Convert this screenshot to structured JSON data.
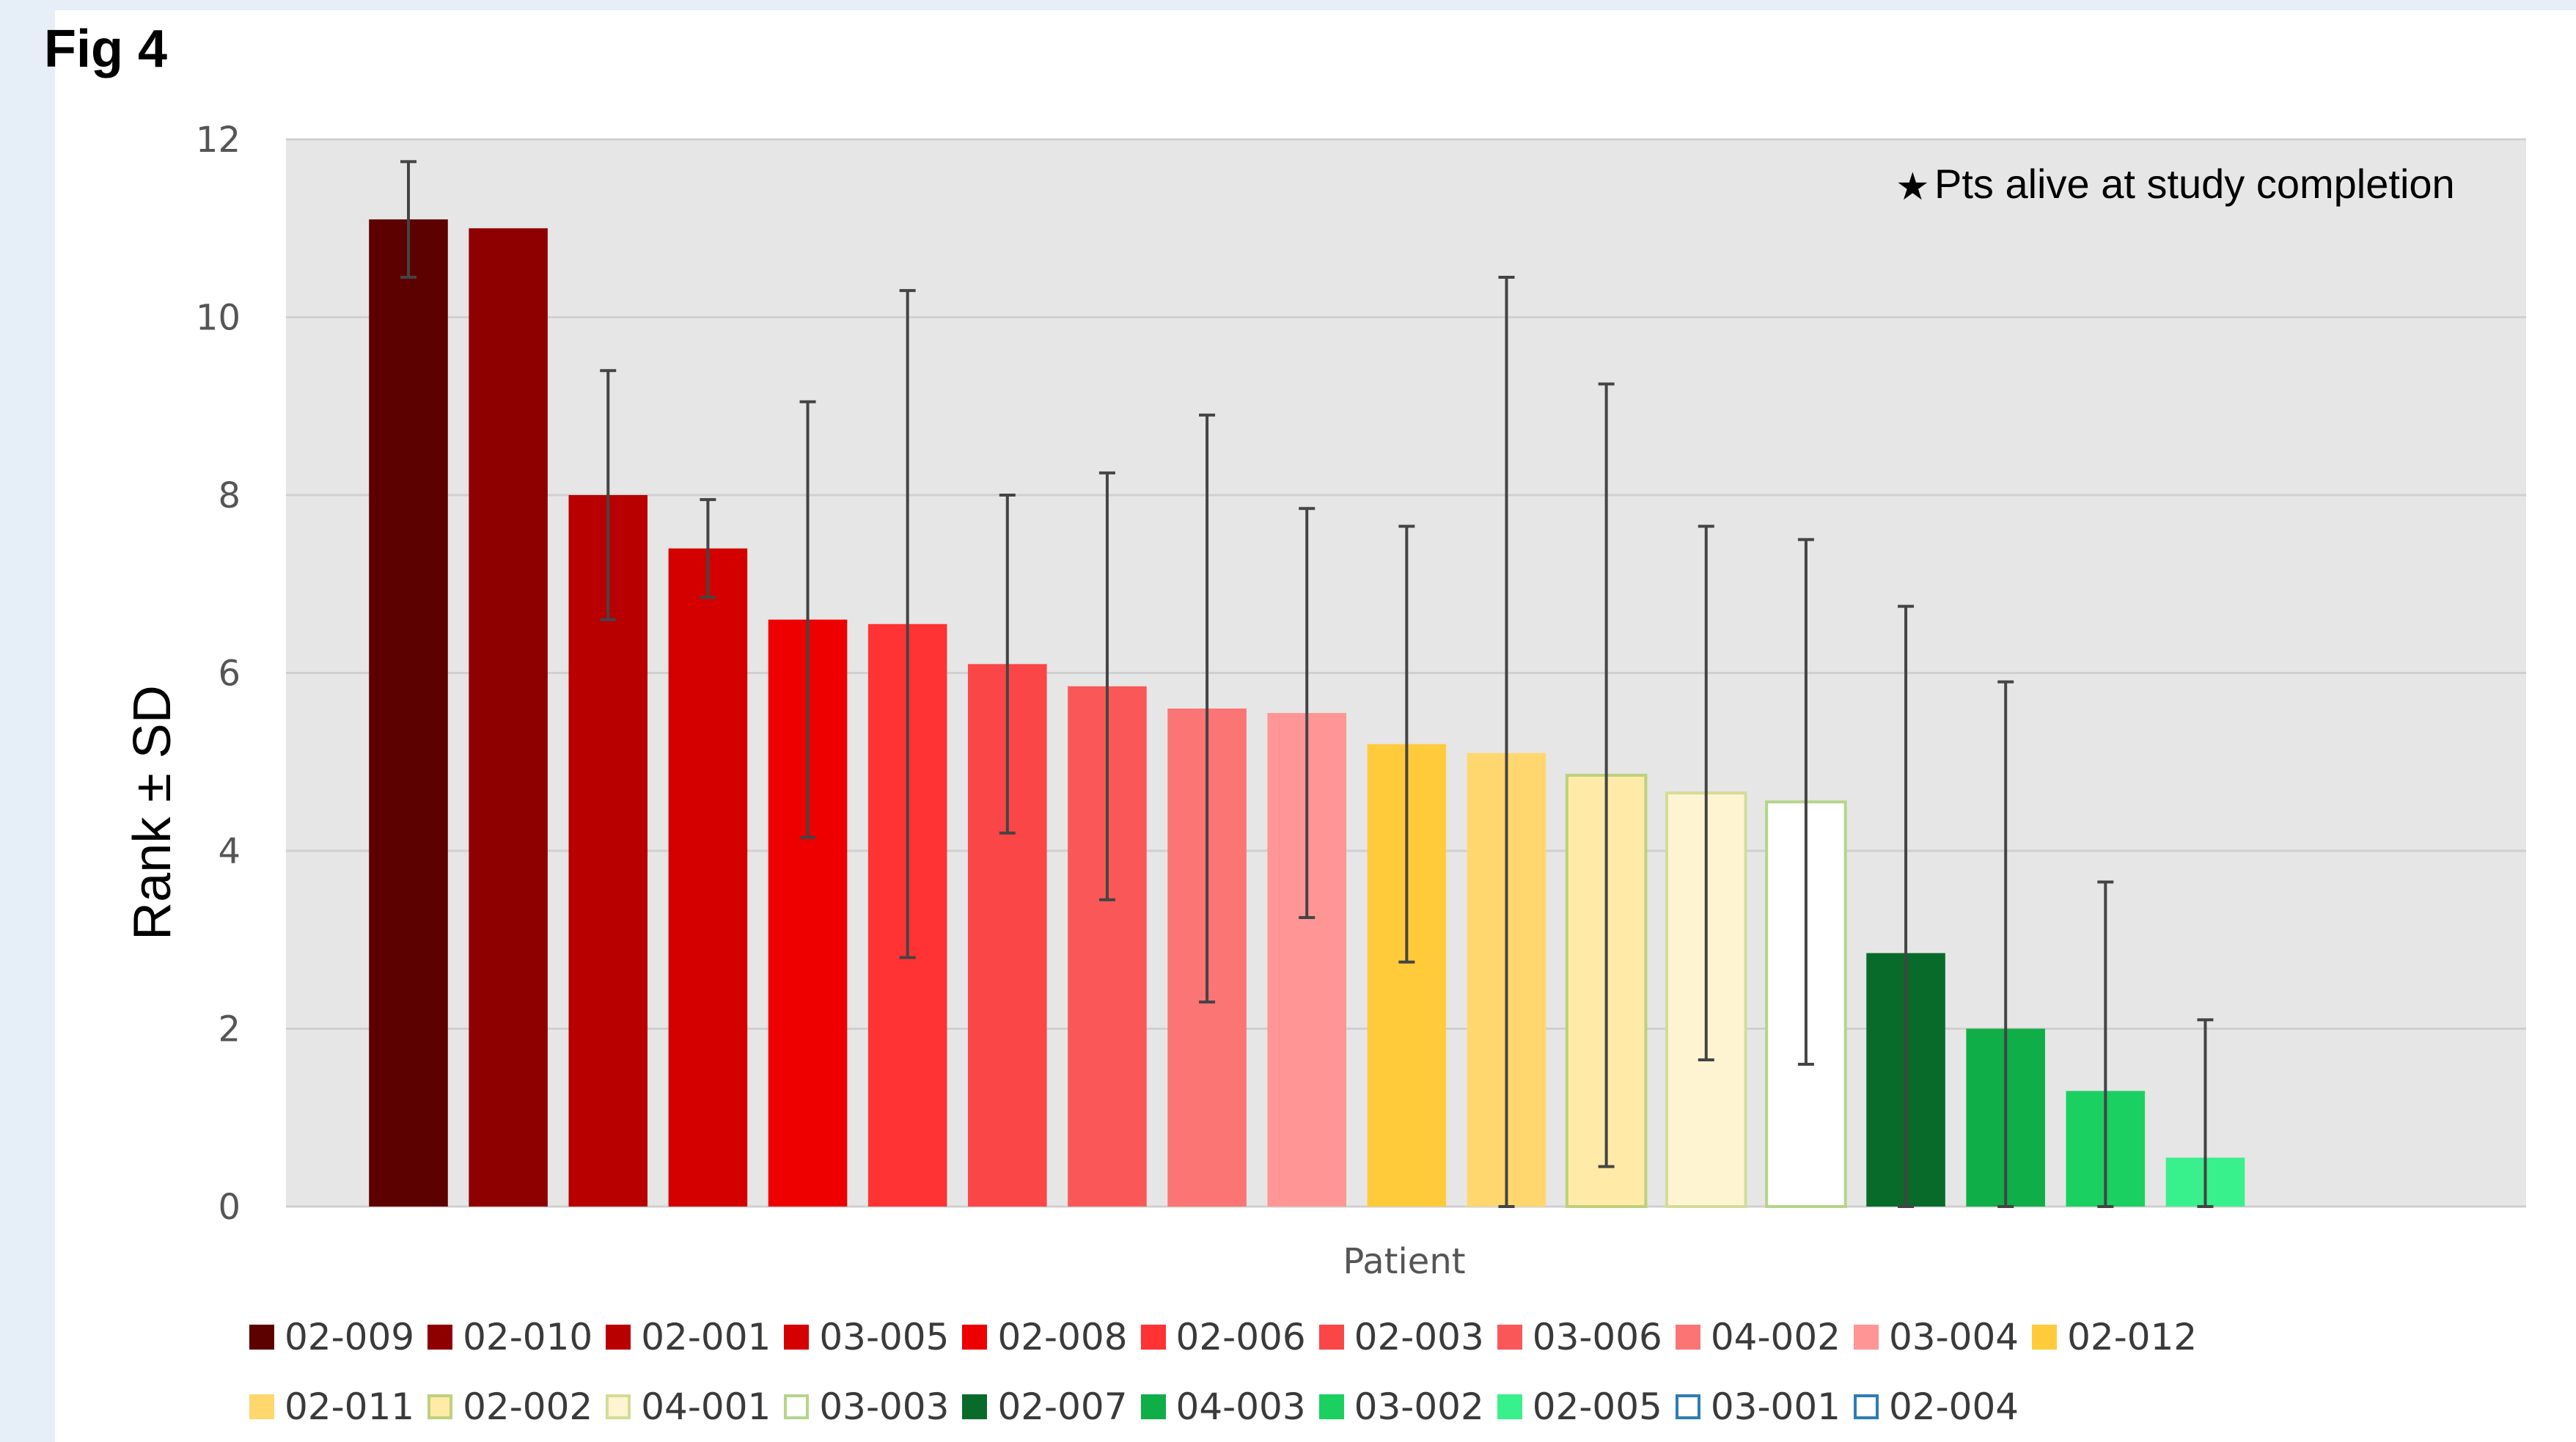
{
  "figure_label": "Fig 4",
  "chart_data": {
    "type": "bar",
    "title": "",
    "xlabel": "Patient",
    "ylabel": "Rank ± SD",
    "ylim": [
      0,
      12
    ],
    "yticks": [
      "0",
      "2",
      "4",
      "6",
      "8",
      "10",
      "12"
    ],
    "grid": true,
    "annotation": "Pts alive at study completion",
    "annotation_icon": "star-icon",
    "categories": [
      "02-009",
      "02-010",
      "02-001",
      "03-005",
      "02-008",
      "02-006",
      "02-003",
      "03-006",
      "04-002",
      "03-004",
      "02-012",
      "02-011",
      "02-002",
      "04-001",
      "03-003",
      "02-007",
      "04-003",
      "03-002",
      "02-005",
      "03-001",
      "02-004"
    ],
    "values": [
      11.1,
      11.0,
      8.0,
      7.4,
      6.6,
      6.55,
      6.1,
      5.85,
      5.6,
      5.55,
      5.2,
      5.1,
      4.85,
      4.65,
      4.55,
      2.85,
      2.0,
      1.3,
      0.55,
      0,
      0
    ],
    "sd": [
      0.65,
      0,
      1.4,
      0.55,
      2.45,
      3.75,
      1.9,
      2.4,
      3.3,
      2.3,
      2.45,
      5.35,
      4.4,
      3.0,
      2.95,
      3.9,
      3.9,
      2.35,
      1.55,
      0,
      0
    ],
    "colors": [
      "#5c0000",
      "#8e0000",
      "#b80000",
      "#d40000",
      "#ee0000",
      "#ff3333",
      "#fa4646",
      "#fa5858",
      "#fc7575",
      "#ff9595",
      "#ffcb3b",
      "#ffd76e",
      "#ffeaa8",
      "#fff4d2",
      "#ffffff",
      "#086b2a",
      "#0fae48",
      "#1ad061",
      "#38f08c",
      "#ffffff",
      "#ffffff"
    ],
    "outlines": [
      "none",
      "none",
      "none",
      "none",
      "none",
      "none",
      "none",
      "none",
      "none",
      "none",
      "none",
      "none",
      "#bcd17a",
      "#d2dd97",
      "#b5d48a",
      "none",
      "none",
      "none",
      "none",
      "#2d7db3",
      "#2d7db3"
    ],
    "legend_rows": [
      [
        "02-009",
        "02-010",
        "02-001",
        "03-005",
        "02-008",
        "02-006",
        "02-003",
        "03-006",
        "04-002",
        "03-004",
        "02-012"
      ],
      [
        "02-011",
        "02-002",
        "04-001",
        "03-003",
        "02-007",
        "04-003",
        "03-002",
        "02-005",
        "03-001",
        "02-004"
      ]
    ],
    "legend_placement": "bottom"
  }
}
